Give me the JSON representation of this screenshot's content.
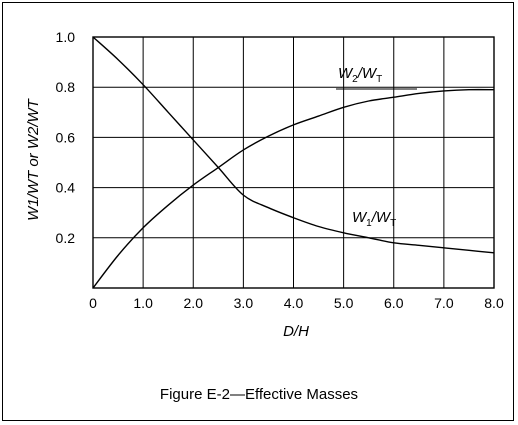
{
  "caption": "Figure  E-2—Effective Masses",
  "chart_data": {
    "type": "line",
    "xlabel": "D/H",
    "ylabel": "W1/WT or W2/WT",
    "xlim": [
      0,
      8
    ],
    "ylim": [
      0,
      1.0
    ],
    "x_ticks": [
      "0",
      "1.0",
      "2.0",
      "3.0",
      "4.0",
      "5.0",
      "6.0",
      "7.0",
      "8.0"
    ],
    "y_ticks": [
      "0.2",
      "0.4",
      "0.6",
      "0.8",
      "1.0"
    ],
    "grid": true,
    "series": [
      {
        "name": "W1/WT",
        "x": [
          0,
          0.5,
          1.0,
          1.5,
          2.0,
          2.5,
          3.0,
          3.5,
          4.0,
          4.5,
          5.0,
          5.5,
          6.0,
          6.5,
          7.0,
          7.5,
          8.0
        ],
        "y": [
          1.0,
          0.91,
          0.81,
          0.7,
          0.59,
          0.48,
          0.37,
          0.32,
          0.28,
          0.245,
          0.22,
          0.2,
          0.18,
          0.17,
          0.16,
          0.15,
          0.14
        ]
      },
      {
        "name": "W2/WT",
        "x": [
          0,
          0.5,
          1.0,
          1.5,
          2.0,
          2.5,
          3.0,
          3.5,
          4.0,
          4.5,
          5.0,
          5.5,
          6.0,
          6.5,
          7.0,
          7.5,
          8.0
        ],
        "y": [
          0.0,
          0.13,
          0.24,
          0.33,
          0.41,
          0.48,
          0.55,
          0.605,
          0.65,
          0.685,
          0.72,
          0.745,
          0.76,
          0.775,
          0.785,
          0.79,
          0.79
        ]
      }
    ],
    "annotations": [
      {
        "series": "W2/WT",
        "num": "W",
        "sub1": "2",
        "mid": "/W",
        "sub2": "T"
      },
      {
        "series": "W1/WT",
        "num": "W",
        "sub1": "1",
        "mid": "/W",
        "sub2": "T"
      }
    ]
  },
  "colors": {
    "line": "#000000",
    "grid": "#000000",
    "background": "#ffffff"
  }
}
